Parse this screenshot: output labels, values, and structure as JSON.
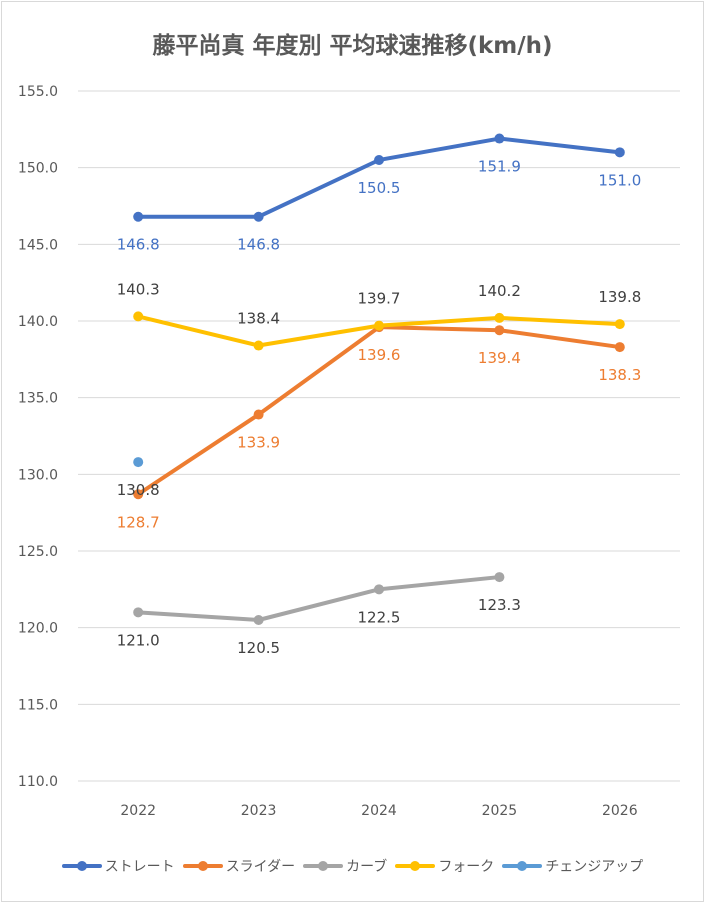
{
  "chart_data": {
    "type": "line",
    "title": "藤平尚真 年度別 平均球速推移(km/h)",
    "xlabel": "",
    "ylabel": "",
    "categories": [
      "2022",
      "2023",
      "2024",
      "2025",
      "2026"
    ],
    "ylim": [
      110,
      155
    ],
    "yticks": [
      "110.0",
      "115.0",
      "120.0",
      "125.0",
      "130.0",
      "135.0",
      "140.0",
      "145.0",
      "150.0",
      "155.0"
    ],
    "grid": true,
    "legend_position": "bottom",
    "series": [
      {
        "name": "ストレート",
        "color": "#4472C4",
        "label_color": "#4472C4",
        "label_pos": "below",
        "values": [
          146.8,
          146.8,
          150.5,
          151.9,
          151.0
        ],
        "labels": [
          "146.8",
          "146.8",
          "150.5",
          "151.9",
          "151.0"
        ]
      },
      {
        "name": "スライダー",
        "color": "#ED7D31",
        "label_color": "#ED7D31",
        "label_pos": "below",
        "values": [
          128.7,
          133.9,
          139.6,
          139.4,
          138.3
        ],
        "labels": [
          "128.7",
          "133.9",
          "139.6",
          "139.4",
          "138.3"
        ]
      },
      {
        "name": "カーブ",
        "color": "#A5A5A5",
        "label_color": "#404040",
        "label_pos": "below",
        "values": [
          121.0,
          120.5,
          122.5,
          123.3,
          null
        ],
        "labels": [
          "121.0",
          "120.5",
          "122.5",
          "123.3",
          null
        ]
      },
      {
        "name": "フォーク",
        "color": "#FFC000",
        "label_color": "#404040",
        "label_pos": "above",
        "values": [
          140.3,
          138.4,
          139.7,
          140.2,
          139.8
        ],
        "labels": [
          "140.3",
          "138.4",
          "139.7",
          "140.2",
          "139.8"
        ]
      },
      {
        "name": "チェンジアップ",
        "color": "#5B9BD5",
        "label_color": "#404040",
        "label_pos": "below",
        "values": [
          130.8,
          null,
          null,
          null,
          null
        ],
        "labels": [
          "130.8",
          null,
          null,
          null,
          null
        ]
      }
    ]
  }
}
